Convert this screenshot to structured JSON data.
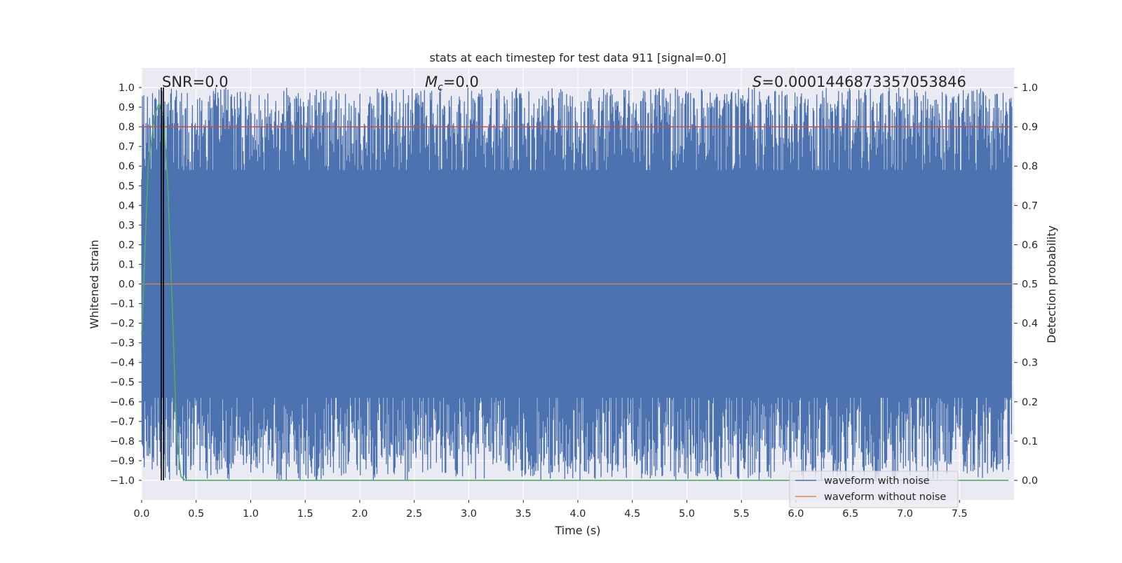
{
  "chart_data": {
    "type": "line",
    "title": "stats at each timestep for test data 911 [signal=0.0]",
    "xlabel": "Time (s)",
    "ylabel": "Whitened strain",
    "y2label": "Detection probability",
    "xlim": [
      0.0,
      8.0
    ],
    "ylim": [
      -1.1,
      1.1
    ],
    "y2lim": [
      -0.05,
      1.05
    ],
    "xticks": [
      "0.0",
      "0.5",
      "1.0",
      "1.5",
      "2.0",
      "2.5",
      "3.0",
      "3.5",
      "4.0",
      "4.5",
      "5.0",
      "5.5",
      "6.0",
      "6.5",
      "7.0",
      "7.5"
    ],
    "yticks": [
      "−1.0",
      "−0.9",
      "−0.8",
      "−0.7",
      "−0.6",
      "−0.5",
      "−0.4",
      "−0.3",
      "−0.2",
      "−0.1",
      "0.0",
      "0.1",
      "0.2",
      "0.3",
      "0.4",
      "0.5",
      "0.6",
      "0.7",
      "0.8",
      "0.9",
      "1.0"
    ],
    "y2ticks": [
      "0.0",
      "0.1",
      "0.2",
      "0.3",
      "0.4",
      "0.5",
      "0.6",
      "0.7",
      "0.8",
      "0.9",
      "1.0"
    ],
    "grid": true,
    "legend_position": "lower-right",
    "annotations": {
      "snr": "SNR=0.0",
      "mc_symbol": "M",
      "mc_sub": "c",
      "mc_value": "=0.0",
      "s_symbol": "S",
      "s_value": "=0.0001446873357053846"
    },
    "series": [
      {
        "name": "waveform with noise",
        "axis": "left",
        "color": "#4c72b0",
        "description_of_values": "dense whitened noise spanning roughly -1.0 to 1.0 over 0 to 8 s",
        "range": [
          -1.0,
          1.0
        ]
      },
      {
        "name": "waveform without noise",
        "axis": "left",
        "color": "#dd8452",
        "x": [
          0.0,
          8.0
        ],
        "y": [
          0.0,
          0.0
        ]
      },
      {
        "axis": "right",
        "color": "#55a868",
        "x": [
          0.0,
          0.06,
          0.12,
          0.16,
          0.2,
          0.24,
          0.28,
          0.32,
          0.36,
          0.4,
          1.0,
          2.0,
          3.0,
          4.0,
          5.0,
          6.0,
          7.0,
          7.95
        ],
        "y": [
          0.37,
          0.8,
          0.93,
          0.96,
          0.93,
          0.75,
          0.45,
          0.12,
          0.01,
          0.0,
          0.0,
          0.0,
          0.0,
          0.0,
          0.0,
          0.0,
          0.0,
          0.0
        ]
      },
      {
        "axis": "right",
        "color": "#c44e52",
        "x": [
          0.0,
          8.0
        ],
        "y": [
          0.9,
          0.9
        ]
      }
    ],
    "vertical_lines": [
      {
        "x": 0.18,
        "color": "#000000"
      },
      {
        "x": 0.2,
        "color": "#000000"
      }
    ],
    "colors": {
      "plot_bg": "#eaeaf2",
      "grid": "#ffffff",
      "text": "#262626"
    }
  }
}
